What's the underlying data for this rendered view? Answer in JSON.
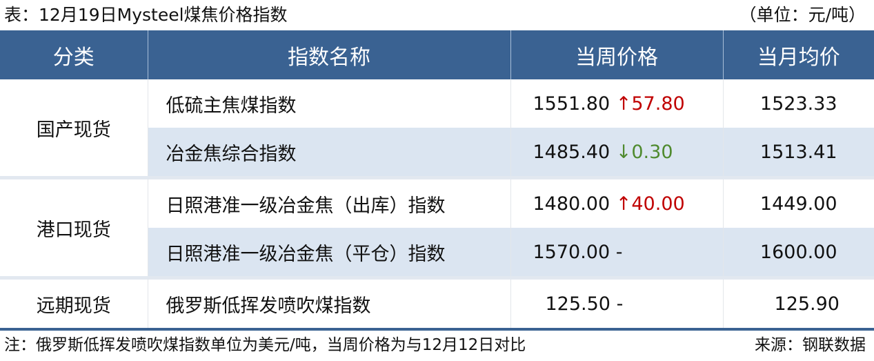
{
  "title": "表：12月19日Mysteel煤焦价格指数",
  "unit": "（单位：元/吨）",
  "headers": [
    "分类",
    "指数名称",
    "当周价格",
    "当月均价"
  ],
  "colors": {
    "header": "#3a6292",
    "stripe": "#dbe5f1",
    "up": "#c00000",
    "down": "#4f8a2e"
  },
  "groups": [
    {
      "category": "国产现货",
      "rows": [
        {
          "name": "低硫主焦煤指数",
          "price": "1551.80",
          "arrow": "↑",
          "change": "57.80",
          "direction": "up",
          "avg": "1523.33"
        },
        {
          "name": "冶金焦综合指数",
          "price": "1485.40",
          "arrow": "↓",
          "change": "0.30",
          "direction": "down",
          "avg": "1513.41"
        }
      ]
    },
    {
      "category": "港口现货",
      "rows": [
        {
          "name": "日照港准一级冶金焦（出库）指数",
          "price": "1480.00",
          "arrow": "↑",
          "change": "40.00",
          "direction": "up",
          "avg": "1449.00"
        },
        {
          "name": "日照港准一级冶金焦（平仓）指数",
          "price": "1570.00",
          "arrow": "",
          "change": "-",
          "direction": "none",
          "avg": "1600.00"
        }
      ]
    },
    {
      "category": "远期现货",
      "rows": [
        {
          "name": "俄罗斯低挥发喷吹煤指数",
          "price": "125.50",
          "arrow": "",
          "change": "-",
          "direction": "none",
          "avg": "125.90"
        }
      ]
    }
  ],
  "note": "注：俄罗斯低挥发喷吹煤指数单位为美元/吨，当周价格为与12月12日对比",
  "source": "来源：钢联数据"
}
